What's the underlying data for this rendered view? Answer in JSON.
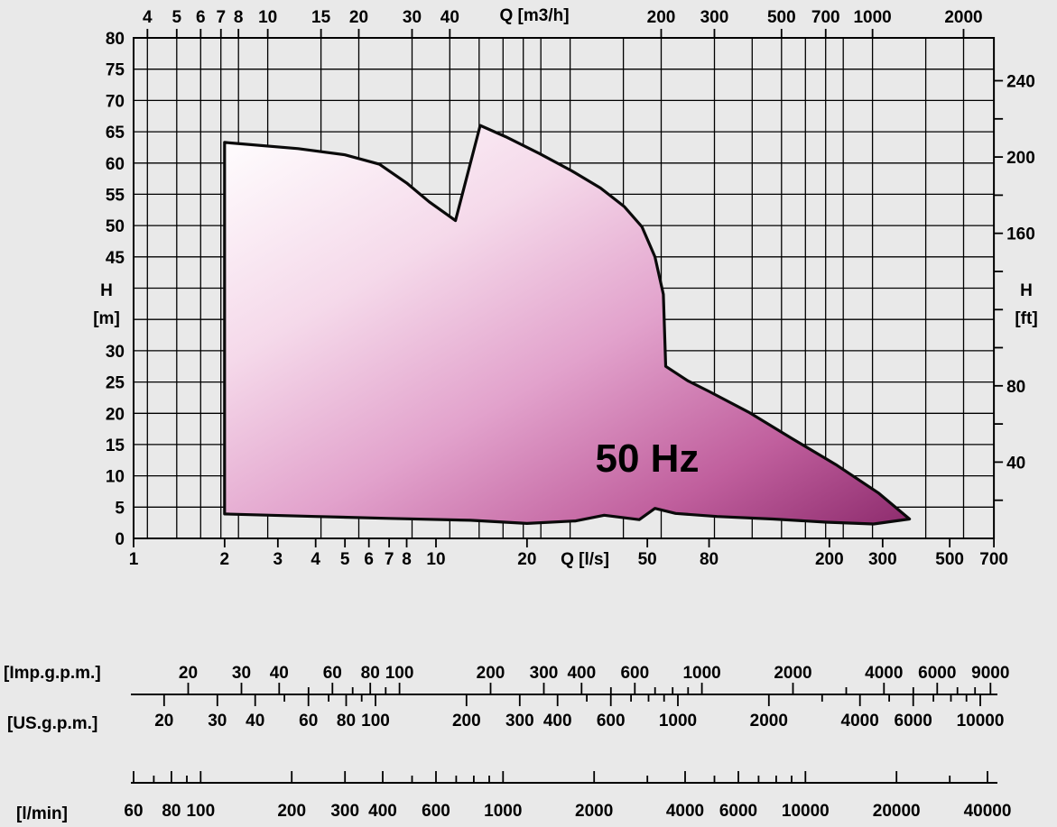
{
  "background_color": "#e9e9e9",
  "chart_data": {
    "type": "area",
    "title": "50 Hz",
    "x_scale": "log",
    "xlim_ls": [
      1,
      700
    ],
    "axes": {
      "top": {
        "label": "Q [m3/h]",
        "to_ls": 0.2777778,
        "ticks": [
          4,
          5,
          6,
          7,
          8,
          10,
          15,
          20,
          30,
          40,
          200,
          300,
          500,
          700,
          1000,
          2000
        ]
      },
      "bottom": {
        "label": "Q [l/s]",
        "ticks": [
          1,
          2,
          3,
          4,
          5,
          6,
          7,
          8,
          10,
          20,
          50,
          80,
          200,
          300,
          500,
          700
        ]
      },
      "left": {
        "symbol": "H",
        "unit": "[m]",
        "range": [
          0,
          80
        ],
        "ticks": [
          80,
          75,
          70,
          65,
          60,
          55,
          50,
          45,
          30,
          25,
          20,
          15,
          10,
          5,
          0
        ]
      },
      "right": {
        "symbol": "H",
        "unit": "[ft]",
        "m_per_ft": 0.3048,
        "minor_step_ft": 20,
        "max_ft": 240,
        "ticks": [
          240,
          200,
          160,
          80,
          40
        ]
      }
    },
    "grid": {
      "h_step_m": 5,
      "v_lines_m3h": [
        4,
        5,
        6,
        7,
        8,
        10,
        15,
        20,
        30,
        40,
        50,
        60,
        70,
        80,
        100,
        150,
        200,
        300,
        400,
        500,
        600,
        700,
        800,
        1000,
        1500,
        2000
      ]
    },
    "envelope_q_h": [
      [
        2,
        63.3
      ],
      [
        3.5,
        62.3
      ],
      [
        5,
        61.3
      ],
      [
        6.5,
        59.8
      ],
      [
        8,
        56.8
      ],
      [
        9.5,
        53.8
      ],
      [
        11.6,
        50.8
      ],
      [
        14,
        66
      ],
      [
        17,
        64.2
      ],
      [
        22,
        61.5
      ],
      [
        28,
        58.8
      ],
      [
        35,
        56
      ],
      [
        42,
        53
      ],
      [
        48,
        49.8
      ],
      [
        53,
        45
      ],
      [
        56.5,
        39
      ],
      [
        57.5,
        27.5
      ],
      [
        68,
        25.2
      ],
      [
        80,
        23.5
      ],
      [
        108,
        20.2
      ],
      [
        150,
        16
      ],
      [
        210,
        11.8
      ],
      [
        290,
        7.3
      ],
      [
        368,
        3.1
      ],
      [
        280,
        2.3
      ],
      [
        195,
        2.6
      ],
      [
        130,
        3.1
      ],
      [
        85,
        3.5
      ],
      [
        62,
        4
      ],
      [
        53,
        4.8
      ],
      [
        47,
        3
      ],
      [
        36,
        3.7
      ],
      [
        29,
        2.8
      ],
      [
        20,
        2.4
      ],
      [
        13,
        2.9
      ],
      [
        7,
        3.2
      ],
      [
        4,
        3.5
      ],
      [
        2,
        3.9
      ]
    ],
    "gradient": {
      "stops": [
        {
          "offset": 0,
          "color": "#ffffff"
        },
        {
          "offset": 0.3,
          "color": "#f5d9ea"
        },
        {
          "offset": 0.55,
          "color": "#e2a2cc"
        },
        {
          "offset": 0.8,
          "color": "#c05f9d"
        },
        {
          "offset": 1,
          "color": "#8e2c6e"
        }
      ]
    }
  },
  "rulers": {
    "imp_gpm": {
      "unit_label": "[Imp.g.p.m.]",
      "per_ls": 13.198,
      "tick_min": 20,
      "tick_max": 9000,
      "labels": [
        20,
        30,
        40,
        60,
        80,
        100,
        200,
        300,
        400,
        600,
        1000,
        2000,
        4000,
        6000,
        9000
      ]
    },
    "us_gpm": {
      "unit_label": "[US.g.p.m.]",
      "per_ls": 15.85,
      "tick_min": 20,
      "tick_max": 10000,
      "labels": [
        20,
        30,
        40,
        60,
        80,
        100,
        200,
        300,
        400,
        600,
        1000,
        2000,
        4000,
        6000,
        10000
      ]
    },
    "l_min": {
      "unit_label": "[l/min]",
      "per_ls": 60,
      "tick_min": 60,
      "tick_max": 40000,
      "labels": [
        60,
        80,
        100,
        200,
        300,
        400,
        600,
        1000,
        2000,
        4000,
        6000,
        10000,
        20000,
        40000
      ]
    }
  }
}
